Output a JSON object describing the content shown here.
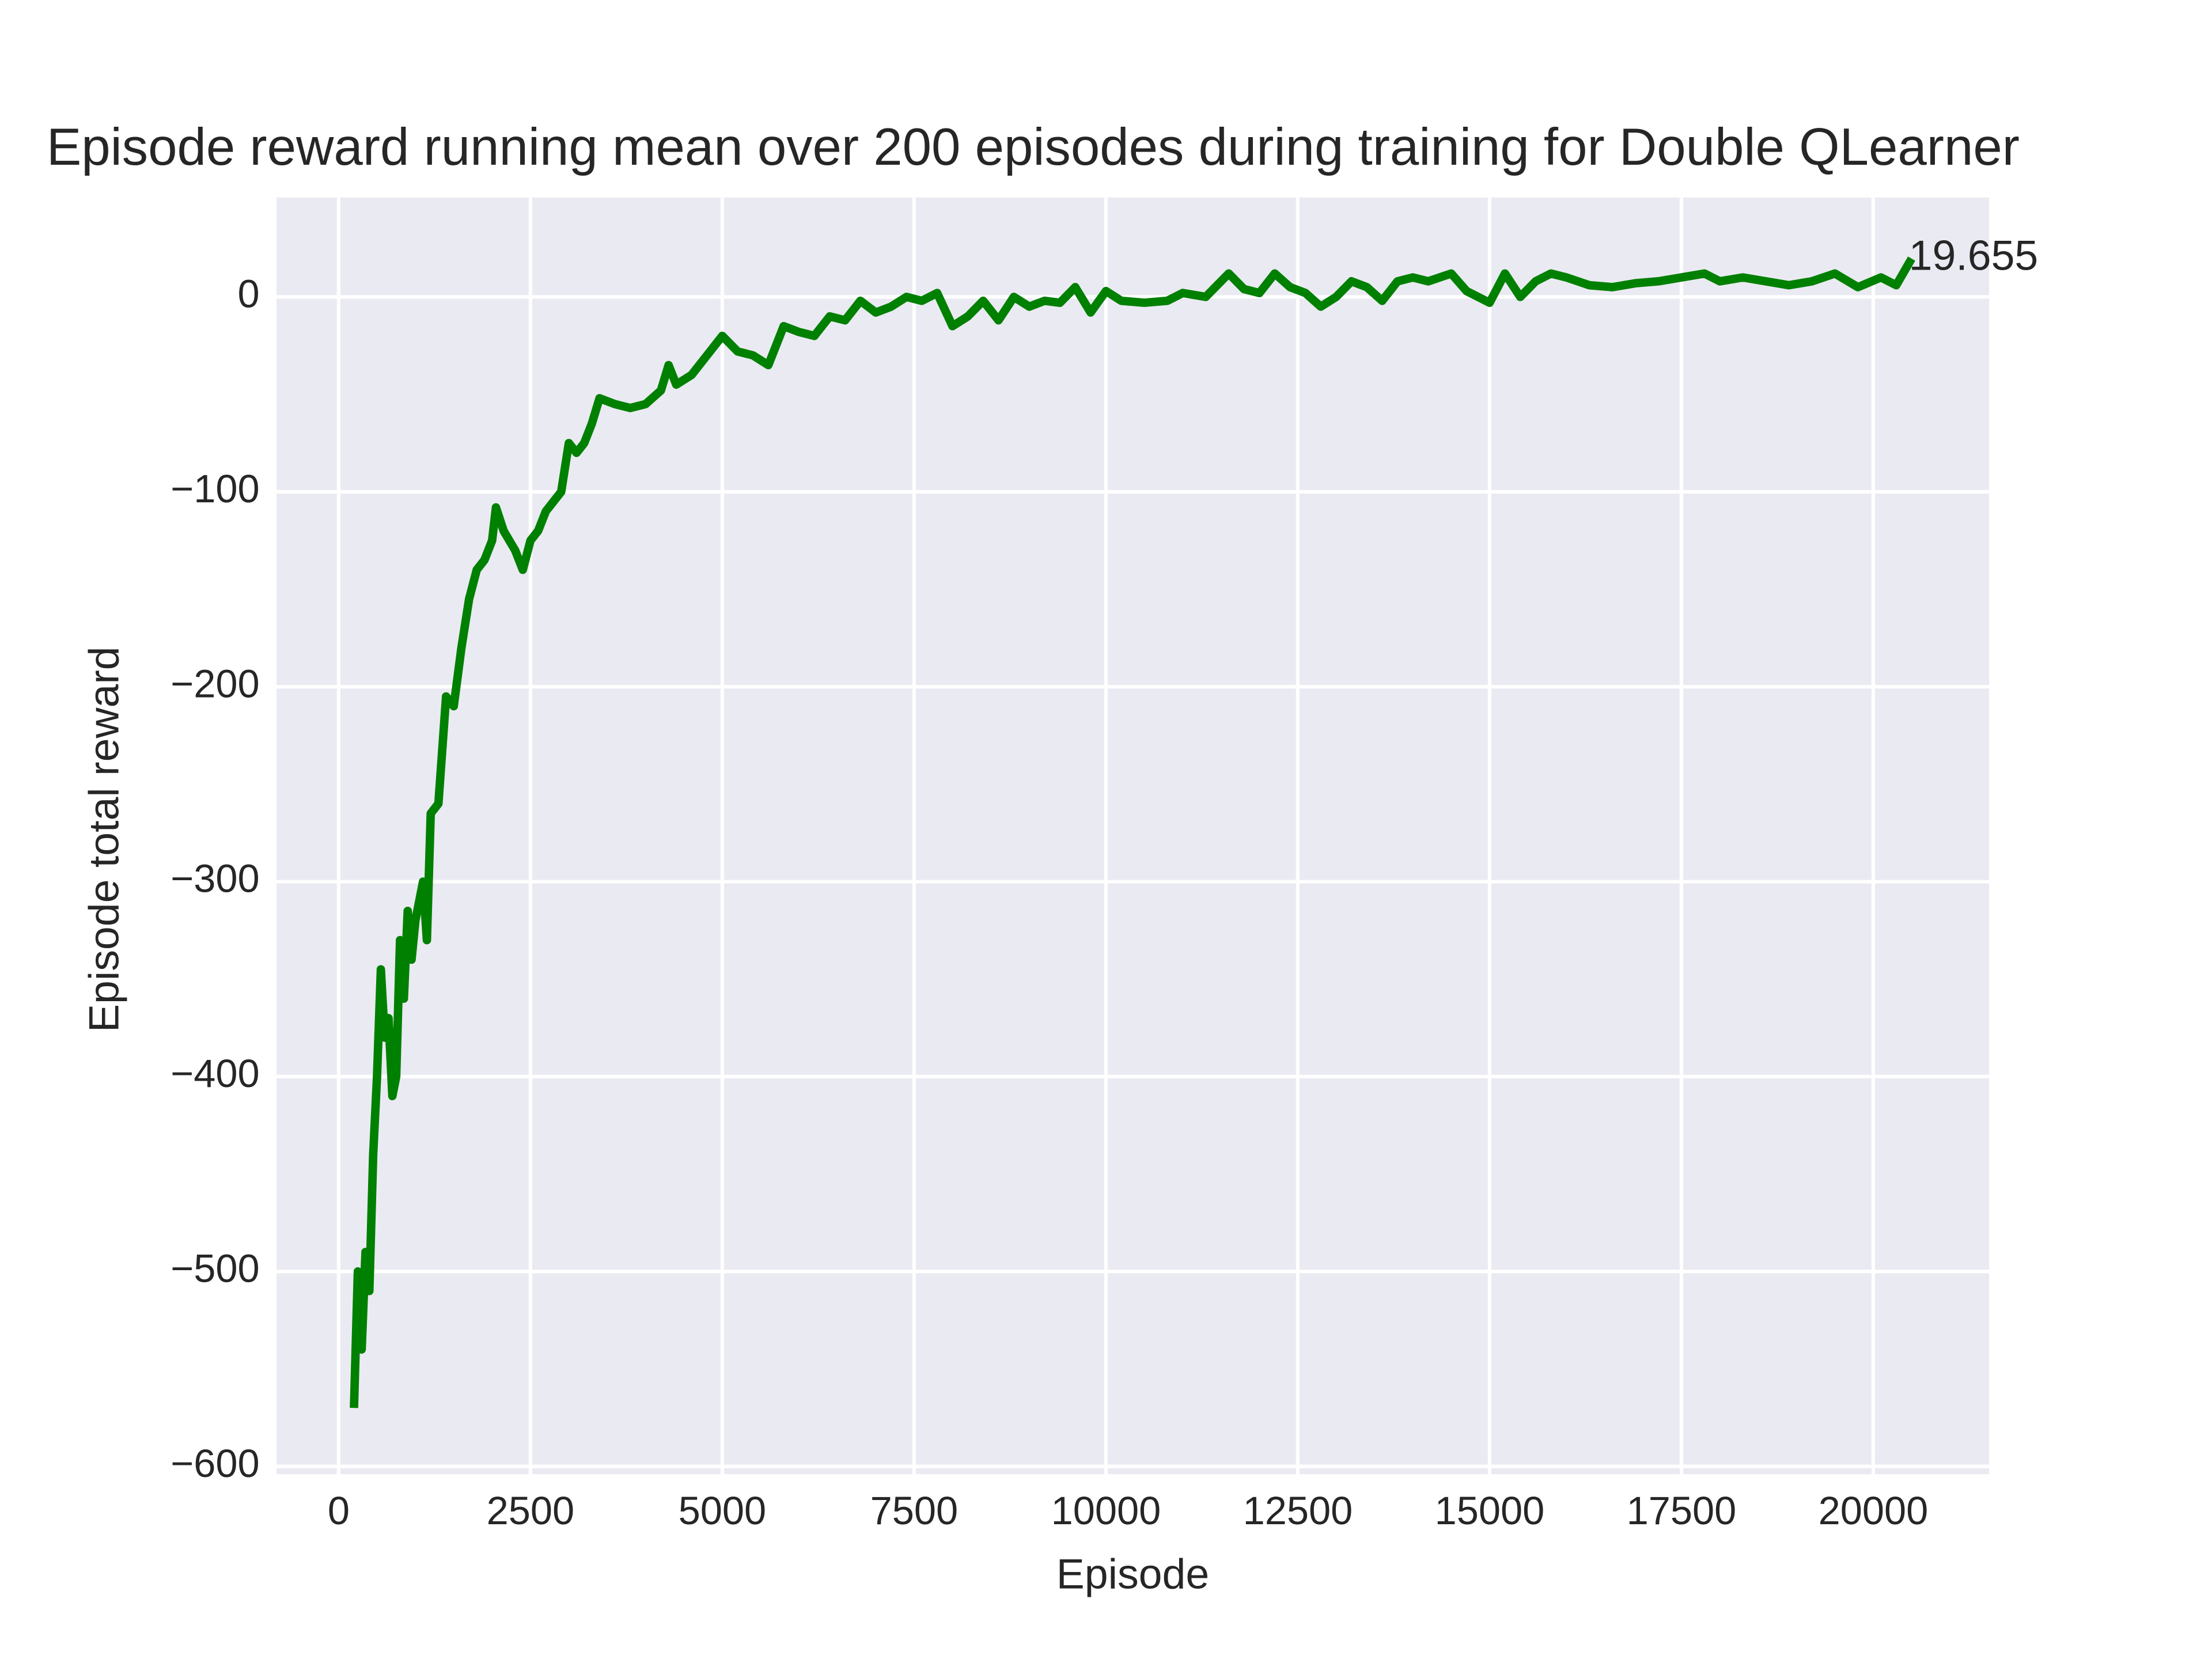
{
  "chart_data": {
    "type": "line",
    "title": "Episode reward running mean over 200 episodes during training for Double QLearner",
    "xlabel": "Episode",
    "ylabel": "Episode total reward",
    "annotation": "19.655",
    "color": "#008000",
    "x": [
      200,
      250,
      300,
      350,
      400,
      450,
      500,
      550,
      600,
      650,
      700,
      750,
      800,
      850,
      900,
      950,
      1000,
      1100,
      1150,
      1200,
      1300,
      1400,
      1500,
      1600,
      1700,
      1800,
      1900,
      2000,
      2050,
      2150,
      2300,
      2400,
      2500,
      2600,
      2700,
      2800,
      2900,
      3000,
      3100,
      3200,
      3300,
      3400,
      3600,
      3800,
      4000,
      4200,
      4300,
      4400,
      4600,
      4800,
      5000,
      5200,
      5400,
      5600,
      5800,
      6000,
      6200,
      6400,
      6600,
      6800,
      7000,
      7200,
      7400,
      7600,
      7800,
      8000,
      8200,
      8400,
      8600,
      8800,
      9000,
      9200,
      9400,
      9600,
      9800,
      10000,
      10200,
      10500,
      10800,
      11000,
      11300,
      11600,
      11800,
      12000,
      12200,
      12400,
      12600,
      12800,
      13000,
      13200,
      13400,
      13600,
      13800,
      14000,
      14200,
      14500,
      14700,
      15000,
      15200,
      15400,
      15600,
      15800,
      16000,
      16300,
      16600,
      16900,
      17200,
      17500,
      17800,
      18000,
      18300,
      18600,
      18900,
      19200,
      19500,
      19800,
      20100,
      20300,
      20500
    ],
    "values": [
      -570,
      -500,
      -540,
      -490,
      -510,
      -440,
      -400,
      -345,
      -380,
      -370,
      -410,
      -400,
      -330,
      -360,
      -315,
      -340,
      -320,
      -300,
      -330,
      -265,
      -260,
      -205,
      -210,
      -180,
      -155,
      -140,
      -135,
      -125,
      -108,
      -120,
      -130,
      -140,
      -125,
      -120,
      -110,
      -105,
      -100,
      -75,
      -80,
      -75,
      -65,
      -52,
      -55,
      -57,
      -55,
      -48,
      -35,
      -45,
      -40,
      -30,
      -20,
      -28,
      -30,
      -35,
      -15,
      -18,
      -20,
      -10,
      -12,
      -2,
      -8,
      -5,
      0,
      -2,
      2,
      -15,
      -10,
      -2,
      -12,
      0,
      -5,
      -2,
      -3,
      5,
      -8,
      3,
      -2,
      -3,
      -2,
      2,
      0,
      12,
      4,
      2,
      12,
      5,
      2,
      -5,
      0,
      8,
      5,
      -2,
      8,
      10,
      8,
      12,
      3,
      -3,
      12,
      0,
      8,
      12,
      10,
      6,
      5,
      7,
      8,
      10,
      12,
      8,
      10,
      8,
      6,
      8,
      12,
      5,
      10,
      6,
      19.655
    ],
    "xlim": [
      -810,
      21510
    ],
    "ylim": [
      -604,
      51
    ],
    "xticks": [
      0,
      2500,
      5000,
      7500,
      10000,
      12500,
      15000,
      17500,
      20000
    ],
    "yticks": [
      {
        "value": -600,
        "label": "−600"
      },
      {
        "value": -500,
        "label": "−500"
      },
      {
        "value": -400,
        "label": "−400"
      },
      {
        "value": -300,
        "label": "−300"
      },
      {
        "value": -200,
        "label": "−200"
      },
      {
        "value": -100,
        "label": "−100"
      },
      0
    ],
    "grid": true
  }
}
